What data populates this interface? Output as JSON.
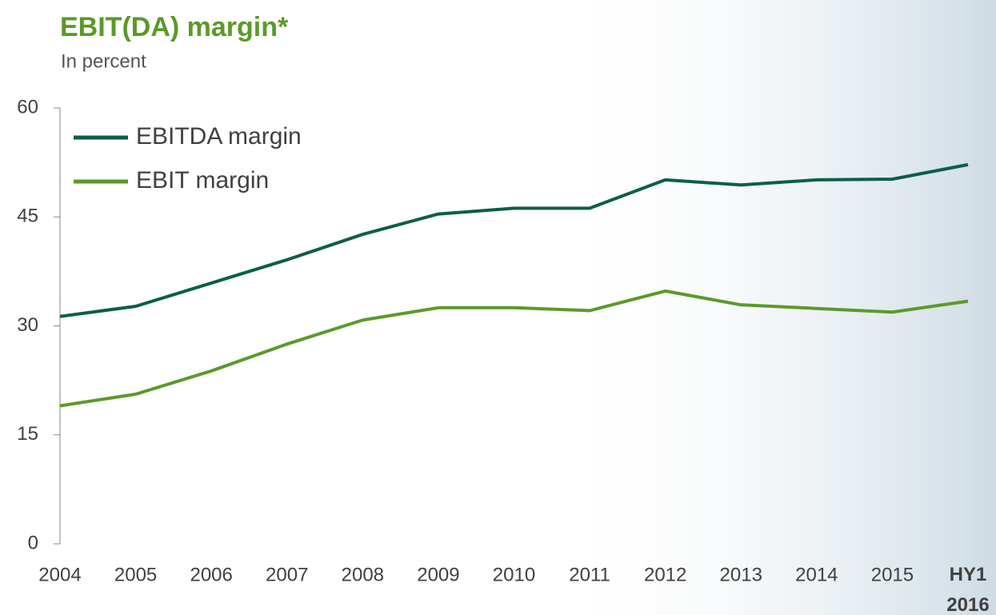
{
  "chart_data": {
    "type": "line",
    "title": "EBIT(DA) margin*",
    "subtitle": "In percent",
    "categories": [
      "2004",
      "2005",
      "2006",
      "2007",
      "2008",
      "2009",
      "2010",
      "2011",
      "2012",
      "2013",
      "2014",
      "2015",
      "HY1 2016"
    ],
    "series": [
      {
        "name": "EBITDA margin",
        "color": "#0b5e4a",
        "values": [
          31.3,
          32.7,
          35.9,
          39.1,
          42.6,
          45.4,
          46.2,
          46.2,
          50.1,
          49.4,
          50.1,
          50.2,
          52.2
        ]
      },
      {
        "name": "EBIT margin",
        "color": "#5b9a2a",
        "values": [
          19.0,
          20.6,
          23.8,
          27.5,
          30.8,
          32.5,
          32.5,
          32.1,
          34.8,
          32.9,
          32.4,
          31.9,
          33.4
        ]
      }
    ],
    "ylim": [
      0,
      60
    ],
    "yticks": [
      0,
      15,
      30,
      45,
      60
    ],
    "grid": false,
    "legend": "top-left"
  }
}
